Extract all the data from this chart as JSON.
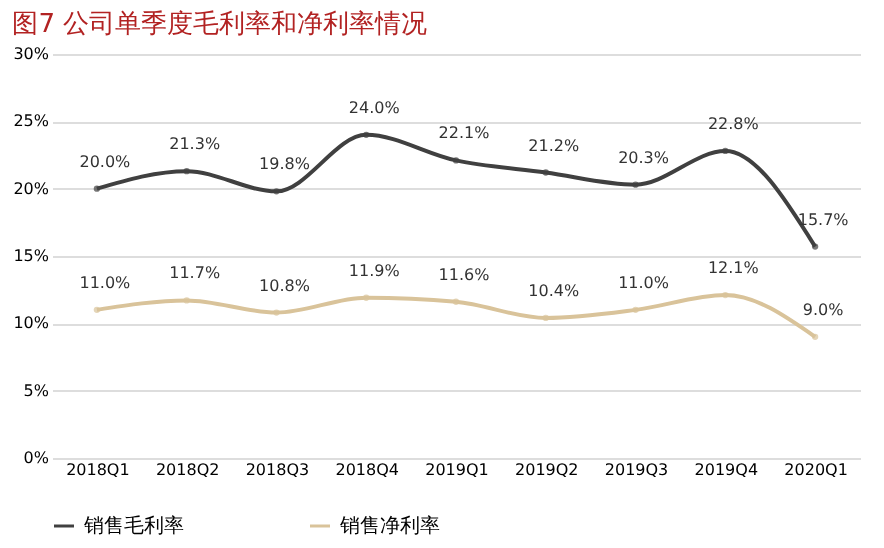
{
  "chart_data": {
    "type": "line",
    "title": "图7   公司单季度毛利率和净利率情况",
    "categories": [
      "2018Q1",
      "2018Q2",
      "2018Q3",
      "2018Q4",
      "2019Q1",
      "2019Q2",
      "2019Q3",
      "2019Q4",
      "2020Q1"
    ],
    "series": [
      {
        "name": "销售毛利率",
        "color": "#404040",
        "values": [
          20.0,
          21.3,
          19.8,
          24.0,
          22.1,
          21.2,
          20.3,
          22.8,
          15.7
        ],
        "value_labels": [
          "20.0%",
          "21.3%",
          "19.8%",
          "24.0%",
          "22.1%",
          "21.2%",
          "20.3%",
          "22.8%",
          "15.7%"
        ]
      },
      {
        "name": "销售净利率",
        "color": "#d9c39a",
        "values": [
          11.0,
          11.7,
          10.8,
          11.9,
          11.6,
          10.4,
          11.0,
          12.1,
          9.0
        ],
        "value_labels": [
          "11.0%",
          "11.7%",
          "10.8%",
          "11.9%",
          "11.6%",
          "10.4%",
          "11.0%",
          "12.1%",
          "9.0%"
        ]
      }
    ],
    "ylim": [
      0,
      30
    ],
    "yticks": [
      {
        "value": 0,
        "label": "0%"
      },
      {
        "value": 5,
        "label": "5%"
      },
      {
        "value": 10,
        "label": "10%"
      },
      {
        "value": 15,
        "label": "15%"
      },
      {
        "value": 20,
        "label": "20%"
      },
      {
        "value": 25,
        "label": "25%"
      },
      {
        "value": 30,
        "label": "30%"
      }
    ],
    "grid": "y",
    "legend": "bottom",
    "marker": "circle",
    "line_style": "solid"
  }
}
